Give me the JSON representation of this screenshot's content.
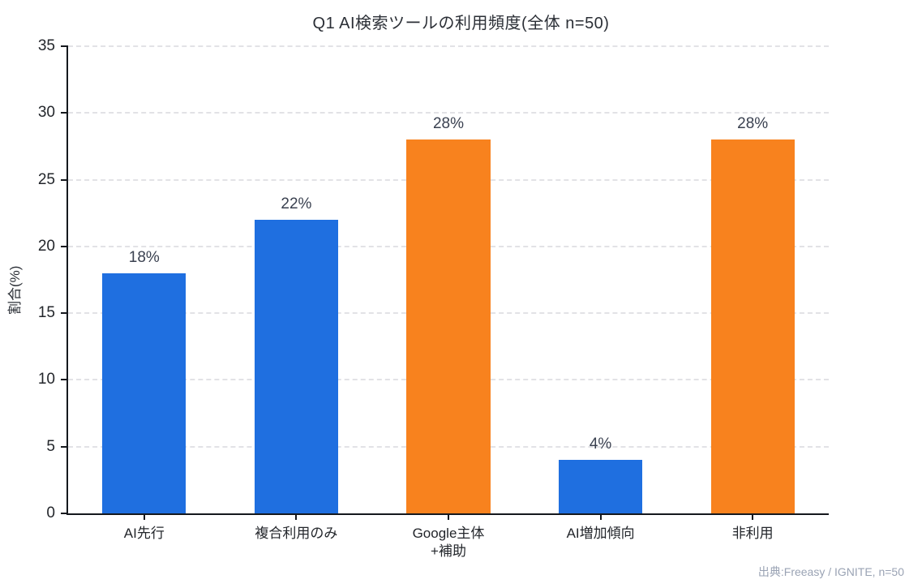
{
  "title": "Q1 AI検索ツールの利用頻度(全体 n=50)",
  "source_note": "出典:Freeasy / IGNITE, n=50",
  "chart_data": {
    "type": "bar",
    "title": "Q1 AI検索ツールの利用頻度(全体 n=50)",
    "xlabel": "",
    "ylabel": "割合(%)",
    "ylim": [
      0,
      35
    ],
    "ytick_step": 5,
    "grid": true,
    "legend": "none",
    "categories": [
      "AI先行",
      "複合利用のみ",
      "Google主体\n+補助",
      "AI増加傾向",
      "非利用"
    ],
    "values": [
      18,
      22,
      28,
      4,
      28
    ],
    "value_labels": [
      "18%",
      "22%",
      "28%",
      "4%",
      "28%"
    ],
    "bar_colors": [
      "#1f6fe0",
      "#1f6fe0",
      "#f8821e",
      "#1f6fe0",
      "#f8821e"
    ],
    "palette": {
      "blue": "#1f6fe0",
      "orange": "#f8821e"
    }
  }
}
